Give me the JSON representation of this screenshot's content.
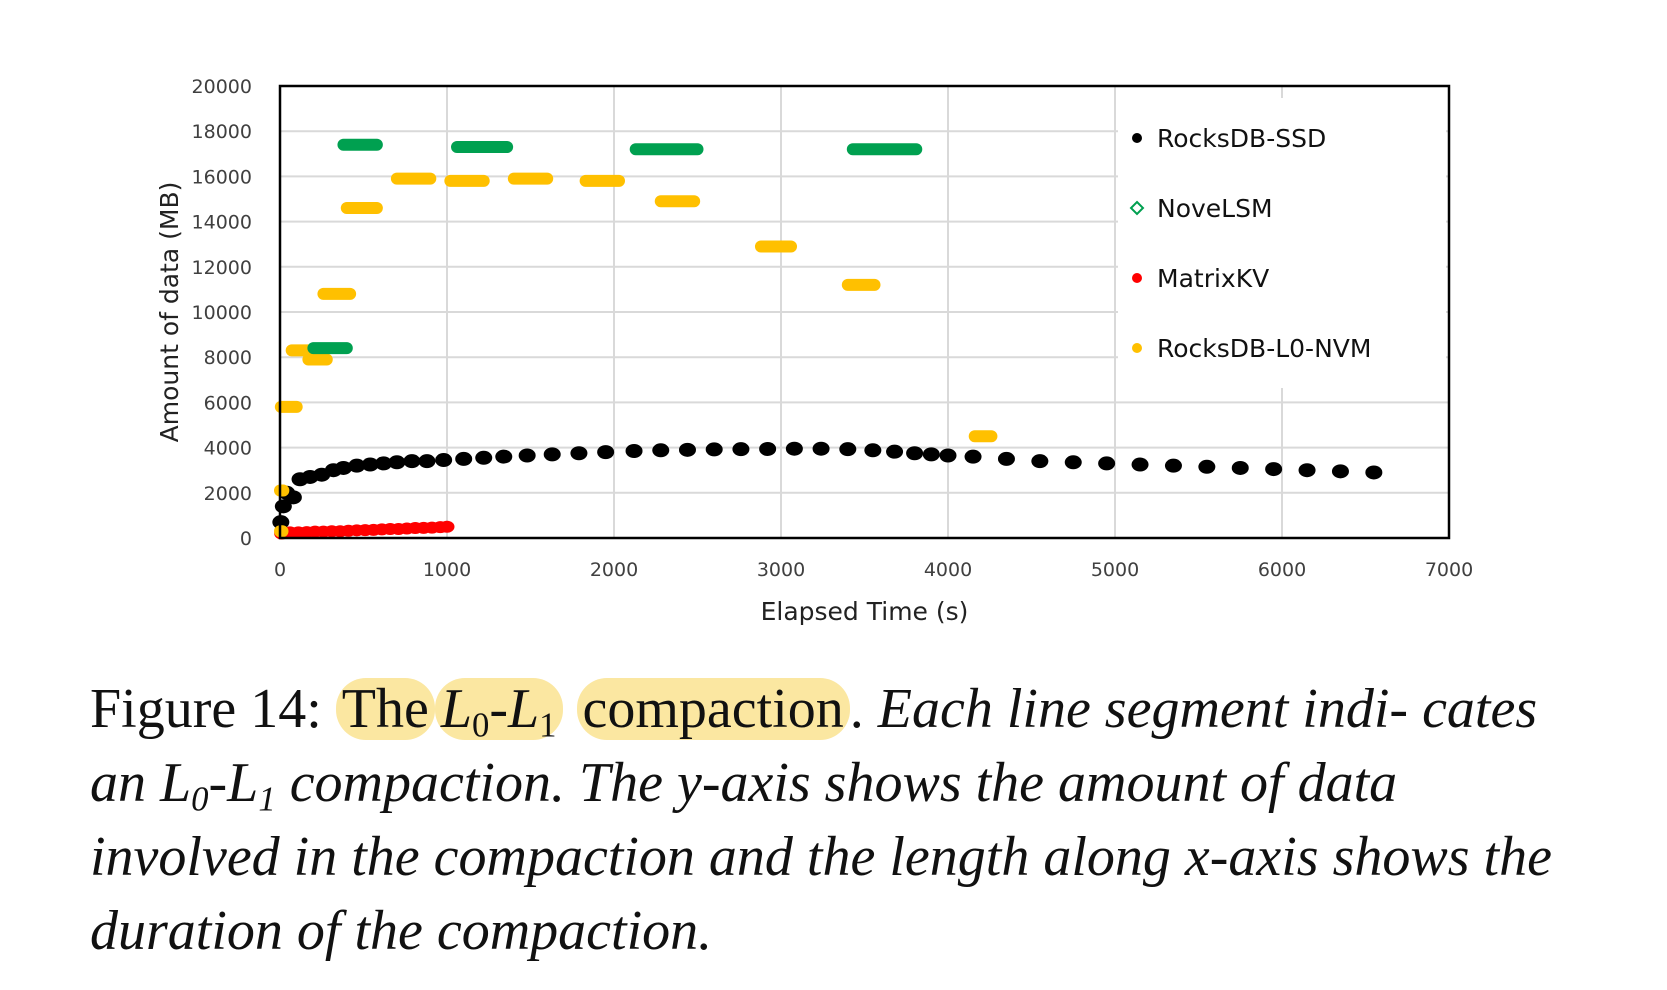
{
  "chart_data": {
    "type": "scatter",
    "xlabel": "Elapsed Time (s)",
    "ylabel": "Amount of data (MB)",
    "xlim": [
      0,
      7000
    ],
    "ylim": [
      0,
      20000
    ],
    "x_ticks": [
      "0",
      "1000",
      "2000",
      "3000",
      "4000",
      "5000",
      "6000",
      "7000"
    ],
    "y_ticks": [
      "0",
      "2000",
      "4000",
      "6000",
      "8000",
      "10000",
      "12000",
      "14000",
      "16000",
      "18000",
      "20000"
    ],
    "grid": "on",
    "legend_position": "right",
    "series": [
      {
        "name": "RocksDB-SSD",
        "color": "#000000",
        "marker": "dot",
        "points": [
          [
            5,
            700
          ],
          [
            20,
            1400
          ],
          [
            40,
            2000
          ],
          [
            80,
            1800
          ],
          [
            120,
            2600
          ],
          [
            180,
            2700
          ],
          [
            250,
            2800
          ],
          [
            320,
            3000
          ],
          [
            380,
            3100
          ],
          [
            460,
            3200
          ],
          [
            540,
            3250
          ],
          [
            620,
            3300
          ],
          [
            700,
            3350
          ],
          [
            790,
            3400
          ],
          [
            880,
            3400
          ],
          [
            980,
            3450
          ],
          [
            1100,
            3500
          ],
          [
            1220,
            3550
          ],
          [
            1340,
            3600
          ],
          [
            1480,
            3650
          ],
          [
            1630,
            3700
          ],
          [
            1790,
            3750
          ],
          [
            1950,
            3800
          ],
          [
            2120,
            3850
          ],
          [
            2280,
            3880
          ],
          [
            2440,
            3900
          ],
          [
            2600,
            3920
          ],
          [
            2760,
            3930
          ],
          [
            2920,
            3940
          ],
          [
            3080,
            3950
          ],
          [
            3240,
            3950
          ],
          [
            3400,
            3930
          ],
          [
            3550,
            3880
          ],
          [
            3680,
            3820
          ],
          [
            3800,
            3750
          ],
          [
            3900,
            3700
          ],
          [
            4000,
            3650
          ],
          [
            4150,
            3600
          ],
          [
            4350,
            3500
          ],
          [
            4550,
            3400
          ],
          [
            4750,
            3350
          ],
          [
            4950,
            3300
          ],
          [
            5150,
            3250
          ],
          [
            5350,
            3200
          ],
          [
            5550,
            3150
          ],
          [
            5750,
            3100
          ],
          [
            5950,
            3050
          ],
          [
            6150,
            3000
          ],
          [
            6350,
            2950
          ],
          [
            6550,
            2900
          ]
        ]
      },
      {
        "name": "NoveLSM",
        "color": "#00a050",
        "marker": "open-diamond",
        "segments": [
          [
            [
              200,
              400
            ],
            8400
          ],
          [
            [
              380,
              580
            ],
            17400
          ],
          [
            [
              1060,
              1360
            ],
            17300
          ],
          [
            [
              2130,
              2500
            ],
            17200
          ],
          [
            [
              3430,
              3810
            ],
            17200
          ]
        ]
      },
      {
        "name": "MatrixKV",
        "color": "#ff0000",
        "marker": "dot",
        "points": [
          [
            10,
            200
          ],
          [
            60,
            250
          ],
          [
            110,
            250
          ],
          [
            160,
            260
          ],
          [
            210,
            280
          ],
          [
            260,
            280
          ],
          [
            310,
            300
          ],
          [
            360,
            300
          ],
          [
            410,
            320
          ],
          [
            460,
            340
          ],
          [
            510,
            350
          ],
          [
            560,
            360
          ],
          [
            610,
            380
          ],
          [
            660,
            400
          ],
          [
            710,
            400
          ],
          [
            760,
            420
          ],
          [
            810,
            440
          ],
          [
            860,
            450
          ],
          [
            910,
            460
          ],
          [
            960,
            480
          ],
          [
            1000,
            500
          ]
        ]
      },
      {
        "name": "RocksDB-L0-NVM",
        "color": "#ffc000",
        "marker": "dot",
        "segments": [
          [
            [
              5,
              100
            ],
            5800
          ],
          [
            [
              70,
              200
            ],
            8300
          ],
          [
            [
              170,
              280
            ],
            7900
          ],
          [
            [
              260,
              420
            ],
            10800
          ],
          [
            [
              400,
              580
            ],
            14600
          ],
          [
            [
              700,
              900
            ],
            15900
          ],
          [
            [
              1020,
              1220
            ],
            15800
          ],
          [
            [
              1400,
              1600
            ],
            15900
          ],
          [
            [
              1830,
              2030
            ],
            15800
          ],
          [
            [
              2280,
              2480
            ],
            14900
          ],
          [
            [
              2880,
              3060
            ],
            12900
          ],
          [
            [
              3400,
              3560
            ],
            11200
          ],
          [
            [
              4160,
              4260
            ],
            4500
          ],
          [
            [
              0,
              20
            ],
            2100
          ],
          [
            [
              0,
              15
            ],
            300
          ]
        ]
      }
    ]
  },
  "caption": {
    "figure_label": "Figure 14:",
    "highlight_the": "The",
    "l0_letter": "L",
    "l0_sub": "0",
    "dash": "-",
    "l1_letter": "L",
    "l1_sub": "1",
    "highlight_compaction": "compaction",
    "period": ".",
    "italic_part1": "Each line segment indi-",
    "italic_part2": "cates an",
    "italic_l0_letter": "L",
    "italic_l0_sub": "0",
    "italic_dash": "-",
    "italic_l1_letter": "L",
    "italic_l1_sub": "1",
    "italic_part3": "compaction. The y-axis shows the amount of",
    "italic_part4": "data involved in the compaction and the length along x-axis",
    "italic_part5": "shows the duration of the compaction."
  }
}
